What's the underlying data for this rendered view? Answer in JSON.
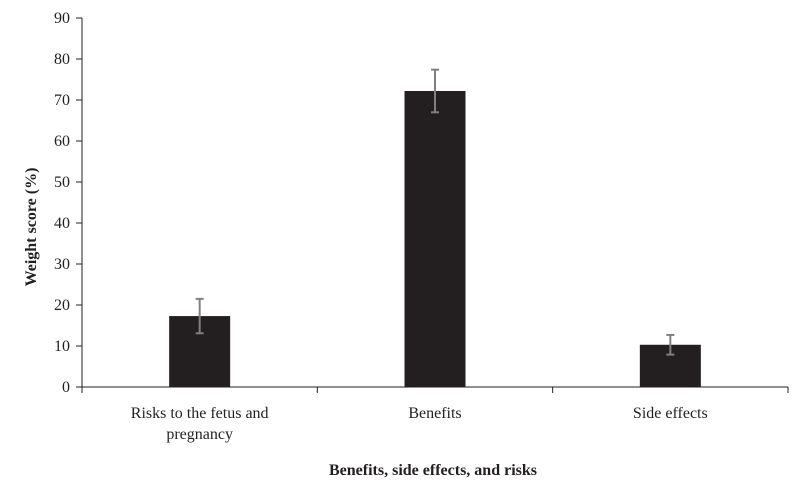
{
  "chart_data": {
    "type": "bar",
    "categories": [
      [
        "Risks to the fetus and",
        "pregnancy"
      ],
      [
        "Benefits"
      ],
      [
        "Side effects"
      ]
    ],
    "values": [
      17.3,
      72.2,
      10.3
    ],
    "error_bars": [
      4.2,
      5.2,
      2.4
    ],
    "xlabel": "Benefits, side effects, and risks",
    "ylabel": "Weight score (%)",
    "ylim": [
      0,
      90
    ],
    "yticks": [
      0,
      10,
      20,
      30,
      40,
      50,
      60,
      70,
      80,
      90
    ],
    "grid": false,
    "legend": "none",
    "colors": {
      "bar": "#231f20",
      "error_bar": "#808080",
      "axis": "#231f20"
    }
  }
}
